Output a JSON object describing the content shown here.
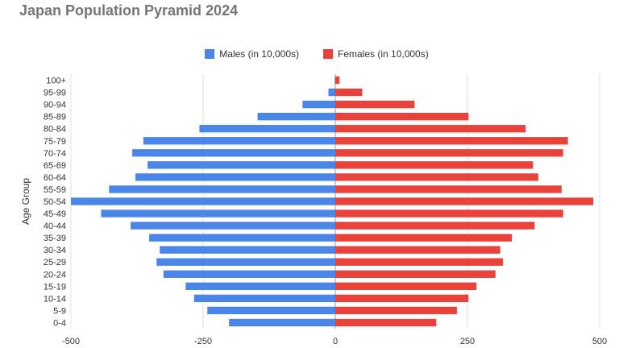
{
  "colors": {
    "males": "#4a86e8",
    "females": "#e8423b",
    "grid": "#e0e0e0",
    "axis": "#333333",
    "title": "#757575"
  },
  "chart_data": {
    "type": "bar",
    "orientation": "horizontal",
    "title": "Japan Population Pyramid 2024",
    "ylabel": "Age Group",
    "xlabel": "",
    "xlim": [
      -500,
      500
    ],
    "xticks": [
      -500,
      -250,
      0,
      250,
      500
    ],
    "xtick_labels": [
      "-500",
      "-250",
      "0",
      "250",
      "500"
    ],
    "grid": true,
    "legend_position": "top",
    "categories": [
      "100+",
      "95-99",
      "90-94",
      "85-89",
      "80-84",
      "75-79",
      "70-74",
      "65-69",
      "60-64",
      "55-59",
      "50-54",
      "45-49",
      "40-44",
      "35-39",
      "30-34",
      "25-29",
      "20-24",
      "15-19",
      "10-14",
      "5-9",
      "0-4"
    ],
    "series": [
      {
        "name": "Males (in 10,000s)",
        "color": "#4a86e8",
        "values": [
          -1,
          -13,
          -62,
          -147,
          -257,
          -363,
          -384,
          -355,
          -378,
          -428,
          -500,
          -443,
          -387,
          -352,
          -332,
          -338,
          -325,
          -283,
          -267,
          -242,
          -201
        ]
      },
      {
        "name": "Females (in 10,000s)",
        "color": "#e8423b",
        "values": [
          8,
          51,
          150,
          252,
          360,
          440,
          431,
          374,
          384,
          428,
          488,
          431,
          377,
          334,
          312,
          317,
          303,
          267,
          252,
          230,
          191
        ]
      }
    ]
  }
}
